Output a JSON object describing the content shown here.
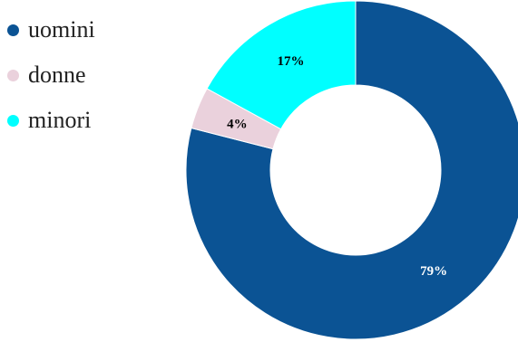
{
  "chart_data": {
    "type": "pie",
    "variant": "donut",
    "title": "",
    "categories": [
      "uomini",
      "donne",
      "minori"
    ],
    "values": [
      79,
      4,
      17
    ],
    "value_labels": [
      "79%",
      "4%",
      "17%"
    ],
    "colors": [
      "#0b5394",
      "#ead1dc",
      "#00ffff"
    ],
    "label_colors": [
      "#ffffff",
      "#000000",
      "#000000"
    ],
    "legend_position": "top-left",
    "start_angle_deg": 0,
    "direction": "clockwise"
  }
}
